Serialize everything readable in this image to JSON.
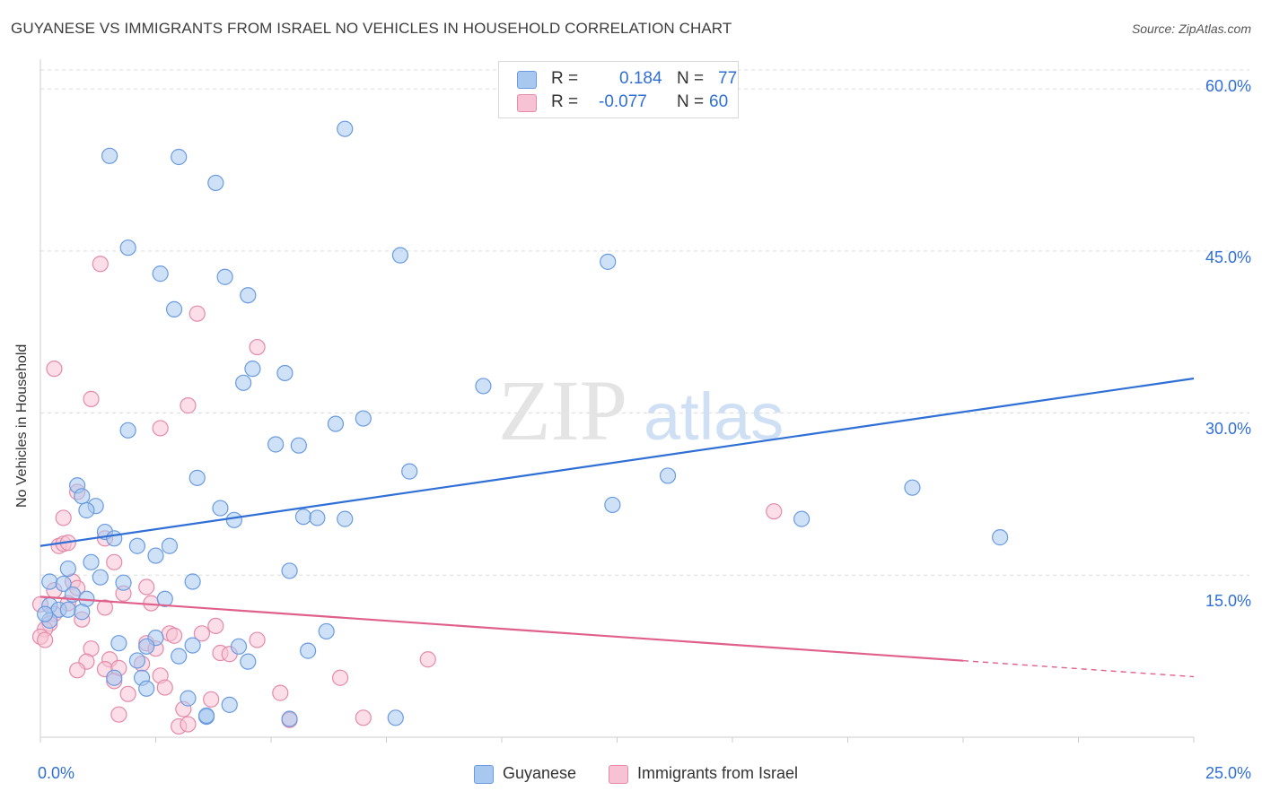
{
  "header": {
    "title": "GUYANESE VS IMMIGRANTS FROM ISRAEL NO VEHICLES IN HOUSEHOLD CORRELATION CHART",
    "source": "Source: ZipAtlas.com"
  },
  "watermark": {
    "zip": "ZIP",
    "atlas": "atlas"
  },
  "stats": {
    "rows": [
      {
        "r_label": "R =",
        "r_value": "0.184",
        "n_label": "N =",
        "n_value": "77",
        "color": "#a8c8f0",
        "border": "#6a9be0"
      },
      {
        "r_label": "R =",
        "r_value": "-0.077",
        "n_label": "N =",
        "n_value": "60",
        "color": "#f7c3d4",
        "border": "#e58aa8"
      }
    ]
  },
  "legend": [
    {
      "label": "Guyanese",
      "color": "#a8c8f0",
      "border": "#6a9be0"
    },
    {
      "label": "Immigrants from Israel",
      "color": "#f7c3d4",
      "border": "#e58aa8"
    }
  ],
  "colors": {
    "guyanese_fill": "#a8c8f0",
    "guyanese_stroke": "#6a9be0",
    "guyanese_line": "#2f6fd6",
    "israel_fill": "#f7c3d4",
    "israel_stroke": "#e58aa8",
    "israel_line": "#e0608c",
    "tick_text": "#2f6fd6",
    "grid": "#dddddd"
  },
  "chart_data": {
    "type": "scatter",
    "title": "GUYANESE VS IMMIGRANTS FROM ISRAEL NO VEHICLES IN HOUSEHOLD CORRELATION CHART",
    "xlabel": "",
    "ylabel": "No Vehicles in Household",
    "xlim": [
      0,
      25
    ],
    "ylim": [
      0,
      62
    ],
    "x_tick_labels": [
      "0.0%",
      "25.0%"
    ],
    "y_ticks": [
      15,
      30,
      45,
      60
    ],
    "y_tick_labels": [
      "15.0%",
      "30.0%",
      "45.0%",
      "60.0%"
    ],
    "grid": true,
    "legend_position": "bottom-center",
    "series": [
      {
        "name": "Guyanese",
        "r": 0.184,
        "n": 77,
        "trend": {
          "x": [
            0,
            25
          ],
          "y": [
            17.7,
            33.2
          ],
          "dashed_from": null
        },
        "points": [
          [
            1.5,
            53.8
          ],
          [
            3.0,
            53.7
          ],
          [
            3.8,
            51.3
          ],
          [
            6.6,
            56.3
          ],
          [
            1.9,
            45.3
          ],
          [
            2.6,
            42.9
          ],
          [
            4.0,
            42.6
          ],
          [
            4.5,
            40.9
          ],
          [
            7.8,
            44.6
          ],
          [
            12.3,
            44.0
          ],
          [
            2.9,
            39.6
          ],
          [
            4.6,
            34.1
          ],
          [
            5.3,
            33.7
          ],
          [
            4.4,
            32.8
          ],
          [
            9.6,
            32.5
          ],
          [
            1.9,
            28.4
          ],
          [
            5.1,
            27.1
          ],
          [
            5.6,
            27.0
          ],
          [
            6.4,
            29.0
          ],
          [
            7.0,
            29.5
          ],
          [
            8.0,
            24.6
          ],
          [
            3.4,
            24.0
          ],
          [
            0.8,
            23.3
          ],
          [
            0.9,
            22.3
          ],
          [
            1.2,
            21.4
          ],
          [
            1.0,
            21.0
          ],
          [
            3.9,
            21.2
          ],
          [
            4.2,
            20.1
          ],
          [
            5.7,
            20.4
          ],
          [
            6.0,
            20.3
          ],
          [
            6.6,
            20.2
          ],
          [
            13.6,
            24.2
          ],
          [
            18.9,
            23.1
          ],
          [
            12.4,
            21.5
          ],
          [
            16.5,
            20.2
          ],
          [
            20.8,
            18.5
          ],
          [
            1.4,
            19.0
          ],
          [
            1.6,
            18.4
          ],
          [
            2.1,
            17.7
          ],
          [
            2.8,
            17.7
          ],
          [
            2.5,
            16.8
          ],
          [
            1.1,
            16.2
          ],
          [
            0.6,
            15.6
          ],
          [
            1.3,
            14.8
          ],
          [
            5.4,
            15.4
          ],
          [
            0.2,
            14.4
          ],
          [
            0.5,
            14.2
          ],
          [
            1.8,
            14.3
          ],
          [
            3.3,
            14.4
          ],
          [
            0.7,
            13.2
          ],
          [
            1.0,
            12.8
          ],
          [
            2.7,
            12.8
          ],
          [
            0.2,
            12.2
          ],
          [
            0.4,
            11.8
          ],
          [
            0.6,
            11.8
          ],
          [
            0.9,
            11.6
          ],
          [
            0.2,
            10.8
          ],
          [
            2.5,
            9.2
          ],
          [
            6.2,
            9.8
          ],
          [
            1.7,
            8.7
          ],
          [
            2.3,
            8.4
          ],
          [
            3.3,
            8.5
          ],
          [
            4.3,
            8.4
          ],
          [
            5.8,
            8.0
          ],
          [
            3.0,
            7.5
          ],
          [
            4.5,
            7.0
          ],
          [
            2.1,
            7.1
          ],
          [
            1.6,
            5.5
          ],
          [
            2.2,
            5.5
          ],
          [
            2.3,
            4.5
          ],
          [
            3.2,
            3.6
          ],
          [
            4.1,
            3.0
          ],
          [
            3.6,
            1.9
          ],
          [
            3.6,
            2.0
          ],
          [
            5.4,
            1.7
          ],
          [
            7.7,
            1.8
          ],
          [
            0.1,
            11.4
          ]
        ]
      },
      {
        "name": "Immigrants from Israel",
        "r": -0.077,
        "n": 60,
        "trend": {
          "x": [
            0,
            25
          ],
          "y": [
            13.0,
            5.6
          ],
          "dashed_from": 20.0
        },
        "points": [
          [
            1.3,
            43.8
          ],
          [
            3.4,
            39.2
          ],
          [
            4.7,
            36.1
          ],
          [
            0.3,
            34.1
          ],
          [
            1.1,
            31.3
          ],
          [
            3.2,
            30.7
          ],
          [
            2.6,
            28.6
          ],
          [
            0.8,
            22.7
          ],
          [
            0.5,
            20.3
          ],
          [
            15.9,
            20.9
          ],
          [
            1.4,
            18.4
          ],
          [
            0.4,
            17.7
          ],
          [
            0.5,
            17.9
          ],
          [
            0.6,
            18.0
          ],
          [
            1.6,
            16.2
          ],
          [
            0.7,
            14.4
          ],
          [
            1.8,
            13.3
          ],
          [
            2.3,
            13.9
          ],
          [
            0.8,
            13.8
          ],
          [
            0.3,
            13.6
          ],
          [
            0.6,
            12.4
          ],
          [
            1.4,
            12.0
          ],
          [
            2.4,
            12.4
          ],
          [
            0.3,
            11.4
          ],
          [
            0.9,
            10.9
          ],
          [
            0.2,
            10.5
          ],
          [
            0.1,
            10.0
          ],
          [
            3.8,
            10.3
          ],
          [
            2.8,
            9.6
          ],
          [
            2.9,
            9.4
          ],
          [
            3.5,
            9.6
          ],
          [
            4.7,
            9.0
          ],
          [
            2.3,
            8.7
          ],
          [
            2.5,
            8.2
          ],
          [
            1.1,
            8.2
          ],
          [
            3.9,
            7.8
          ],
          [
            4.1,
            7.7
          ],
          [
            8.4,
            7.2
          ],
          [
            1.0,
            7.0
          ],
          [
            1.5,
            7.2
          ],
          [
            2.2,
            6.8
          ],
          [
            0.8,
            6.2
          ],
          [
            1.4,
            6.3
          ],
          [
            1.7,
            6.4
          ],
          [
            2.6,
            5.7
          ],
          [
            6.5,
            5.5
          ],
          [
            1.6,
            5.2
          ],
          [
            2.7,
            4.6
          ],
          [
            1.9,
            4.0
          ],
          [
            3.7,
            3.5
          ],
          [
            5.2,
            4.1
          ],
          [
            3.1,
            2.6
          ],
          [
            1.7,
            2.1
          ],
          [
            5.4,
            1.6
          ],
          [
            7.0,
            1.8
          ],
          [
            3.0,
            1.0
          ],
          [
            3.2,
            1.2
          ],
          [
            0.0,
            9.3
          ],
          [
            0.1,
            9.0
          ],
          [
            0.0,
            12.3
          ]
        ]
      }
    ]
  }
}
